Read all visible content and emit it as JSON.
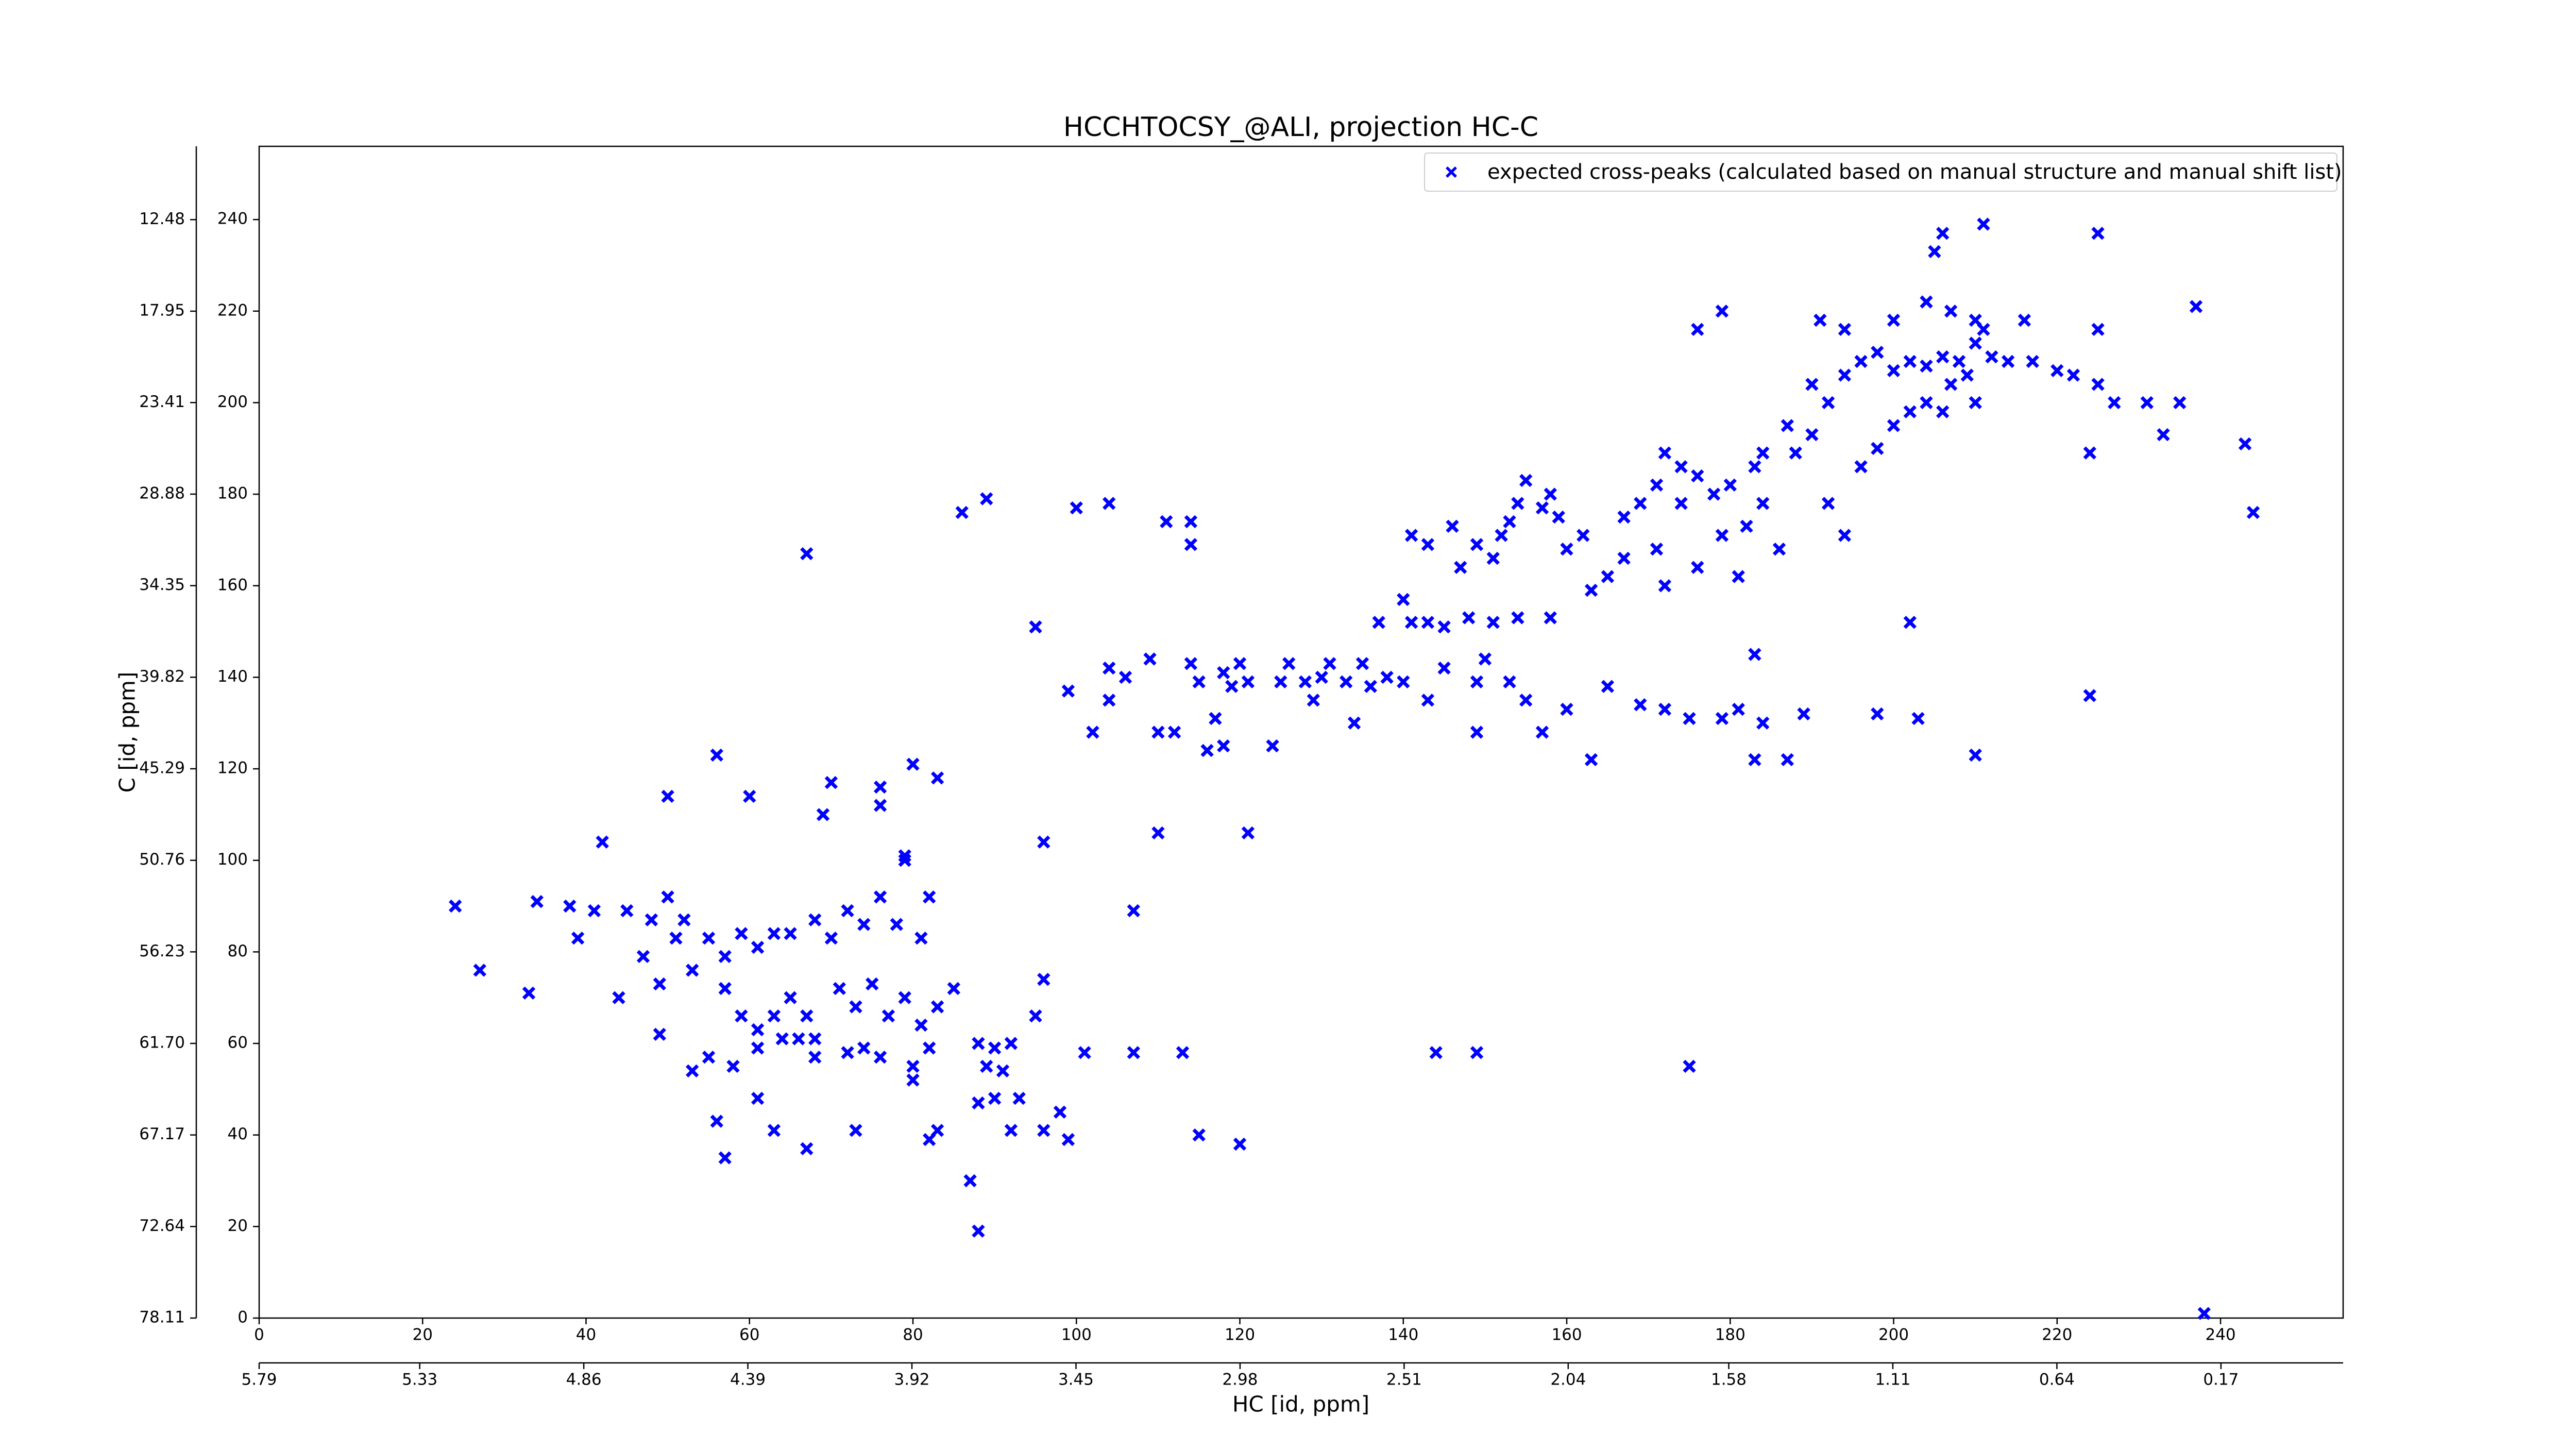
{
  "chart_data": {
    "type": "scatter",
    "title": "HCCHTOCSY_@ALI, projection HC-C",
    "xlabel": "HC [id, ppm]",
    "ylabel": "C [id, ppm]",
    "xlim": [
      0,
      255
    ],
    "ylim": [
      0,
      256
    ],
    "xticks": [
      0,
      20,
      40,
      60,
      80,
      100,
      120,
      140,
      160,
      180,
      200,
      220,
      240
    ],
    "yticks": [
      0,
      20,
      40,
      60,
      80,
      100,
      120,
      140,
      160,
      180,
      200,
      220,
      240
    ],
    "x2lim": [
      5.79,
      -0.18
    ],
    "x2ticks": [
      5.79,
      5.33,
      4.86,
      4.39,
      3.92,
      3.45,
      2.98,
      2.51,
      2.04,
      1.58,
      1.11,
      0.64,
      0.17
    ],
    "y2lim": [
      78.11,
      8.1
    ],
    "y2ticks": [
      78.11,
      72.64,
      67.17,
      {
        "value": 61.7,
        "label": "61.70"
      },
      56.23,
      50.76,
      45.29,
      39.82,
      34.35,
      28.88,
      23.41,
      17.95,
      12.48
    ],
    "grid": false,
    "legend": "upper right",
    "series": [
      {
        "name": "expected cross-peaks (calculated based on manual structure and manual shift list)",
        "color": "#0000ff",
        "x": [
          24,
          34,
          38,
          27,
          33,
          39,
          41,
          45,
          47,
          48,
          50,
          52,
          51,
          49,
          44,
          53,
          55,
          57,
          59,
          61,
          63,
          65,
          68,
          70,
          72,
          74,
          76,
          78,
          79,
          81,
          82,
          57,
          59,
          61,
          63,
          65,
          67,
          68,
          71,
          73,
          75,
          77,
          79,
          81,
          83,
          85,
          58,
          61,
          64,
          66,
          68,
          72,
          74,
          76,
          80,
          82,
          49,
          53,
          55,
          61,
          63,
          56,
          57,
          67,
          73,
          80,
          83,
          82,
          88,
          89,
          90,
          91,
          92,
          88,
          90,
          92,
          93,
          95,
          96,
          96,
          98,
          99,
          101,
          107,
          113,
          115,
          120,
          87,
          88,
          144,
          149,
          175,
          238,
          42,
          56,
          50,
          60,
          70,
          76,
          80,
          83,
          69,
          76,
          96,
          110,
          107,
          121,
          79,
          67,
          86,
          89,
          95,
          100,
          104,
          111,
          114,
          114,
          99,
          102,
          104,
          104,
          106,
          109,
          110,
          112,
          114,
          115,
          117,
          118,
          119,
          120,
          121,
          116,
          118,
          124,
          125,
          126,
          128,
          129,
          130,
          131,
          133,
          134,
          135,
          136,
          138,
          140,
          143,
          145,
          149,
          149,
          150,
          153,
          155,
          157,
          160,
          163,
          165,
          169,
          172,
          175,
          179,
          181,
          183,
          184,
          187,
          189,
          198,
          203,
          210,
          224,
          202,
          183,
          137,
          140,
          141,
          143,
          145,
          148,
          151,
          154,
          158,
          141,
          143,
          146,
          147,
          149,
          151,
          152,
          153,
          154,
          155,
          157,
          158,
          159,
          160,
          162,
          163,
          165,
          167,
          169,
          171,
          172,
          174,
          176,
          178,
          180,
          183,
          184,
          187,
          188,
          190,
          192,
          194,
          196,
          198,
          200,
          202,
          204,
          206,
          207,
          209,
          210,
          190,
          192,
          194,
          196,
          198,
          200,
          202,
          204,
          206,
          208,
          210,
          212,
          214,
          217,
          220,
          222,
          225,
          227,
          231,
          233,
          235,
          243,
          224,
          204,
          207,
          210,
          211,
          216,
          225,
          237,
          205,
          206,
          211,
          225,
          176,
          179,
          191,
          194,
          200,
          244,
          172,
          176,
          181,
          186,
          179,
          182,
          167,
          171,
          174,
          184
        ],
        "values": [
          90,
          91,
          90,
          76,
          71,
          83,
          89,
          89,
          79,
          87,
          92,
          87,
          83,
          73,
          70,
          76,
          83,
          79,
          84,
          81,
          84,
          84,
          87,
          83,
          89,
          86,
          92,
          86,
          101,
          83,
          92,
          72,
          66,
          63,
          66,
          70,
          66,
          61,
          72,
          68,
          73,
          66,
          70,
          64,
          68,
          72,
          55,
          59,
          61,
          61,
          57,
          58,
          59,
          57,
          55,
          59,
          62,
          54,
          57,
          48,
          41,
          43,
          35,
          37,
          41,
          52,
          41,
          39,
          60,
          55,
          59,
          54,
          60,
          47,
          48,
          41,
          48,
          66,
          74,
          41,
          45,
          39,
          58,
          58,
          58,
          40,
          38,
          30,
          19,
          58,
          58,
          55,
          1,
          104,
          123,
          114,
          114,
          117,
          116,
          121,
          118,
          110,
          112,
          104,
          106,
          89,
          106,
          100,
          167,
          176,
          179,
          151,
          177,
          178,
          174,
          174,
          169,
          137,
          128,
          142,
          135,
          140,
          144,
          128,
          128,
          143,
          139,
          131,
          141,
          138,
          143,
          139,
          124,
          125,
          125,
          139,
          143,
          139,
          135,
          140,
          143,
          139,
          130,
          143,
          138,
          140,
          139,
          135,
          142,
          128,
          139,
          144,
          139,
          135,
          128,
          133,
          122,
          138,
          134,
          133,
          131,
          131,
          133,
          122,
          130,
          122,
          132,
          132,
          131,
          123,
          136,
          152,
          145,
          152,
          157,
          152,
          152,
          151,
          153,
          152,
          153,
          153,
          171,
          169,
          173,
          164,
          169,
          166,
          171,
          174,
          178,
          183,
          177,
          180,
          175,
          168,
          171,
          159,
          162,
          175,
          178,
          182,
          189,
          186,
          184,
          180,
          182,
          186,
          189,
          195,
          189,
          193,
          178,
          171,
          186,
          190,
          195,
          198,
          200,
          198,
          204,
          206,
          200,
          204,
          200,
          206,
          209,
          211,
          207,
          209,
          208,
          210,
          209,
          213,
          210,
          209,
          209,
          207,
          206,
          204,
          200,
          200,
          193,
          200,
          191,
          189,
          222,
          220,
          218,
          216,
          218,
          216,
          221,
          233,
          237,
          239,
          237,
          216,
          220,
          218,
          216,
          218,
          176,
          160,
          164,
          162,
          168,
          171,
          173,
          166,
          168,
          178,
          178
        ]
      }
    ]
  }
}
